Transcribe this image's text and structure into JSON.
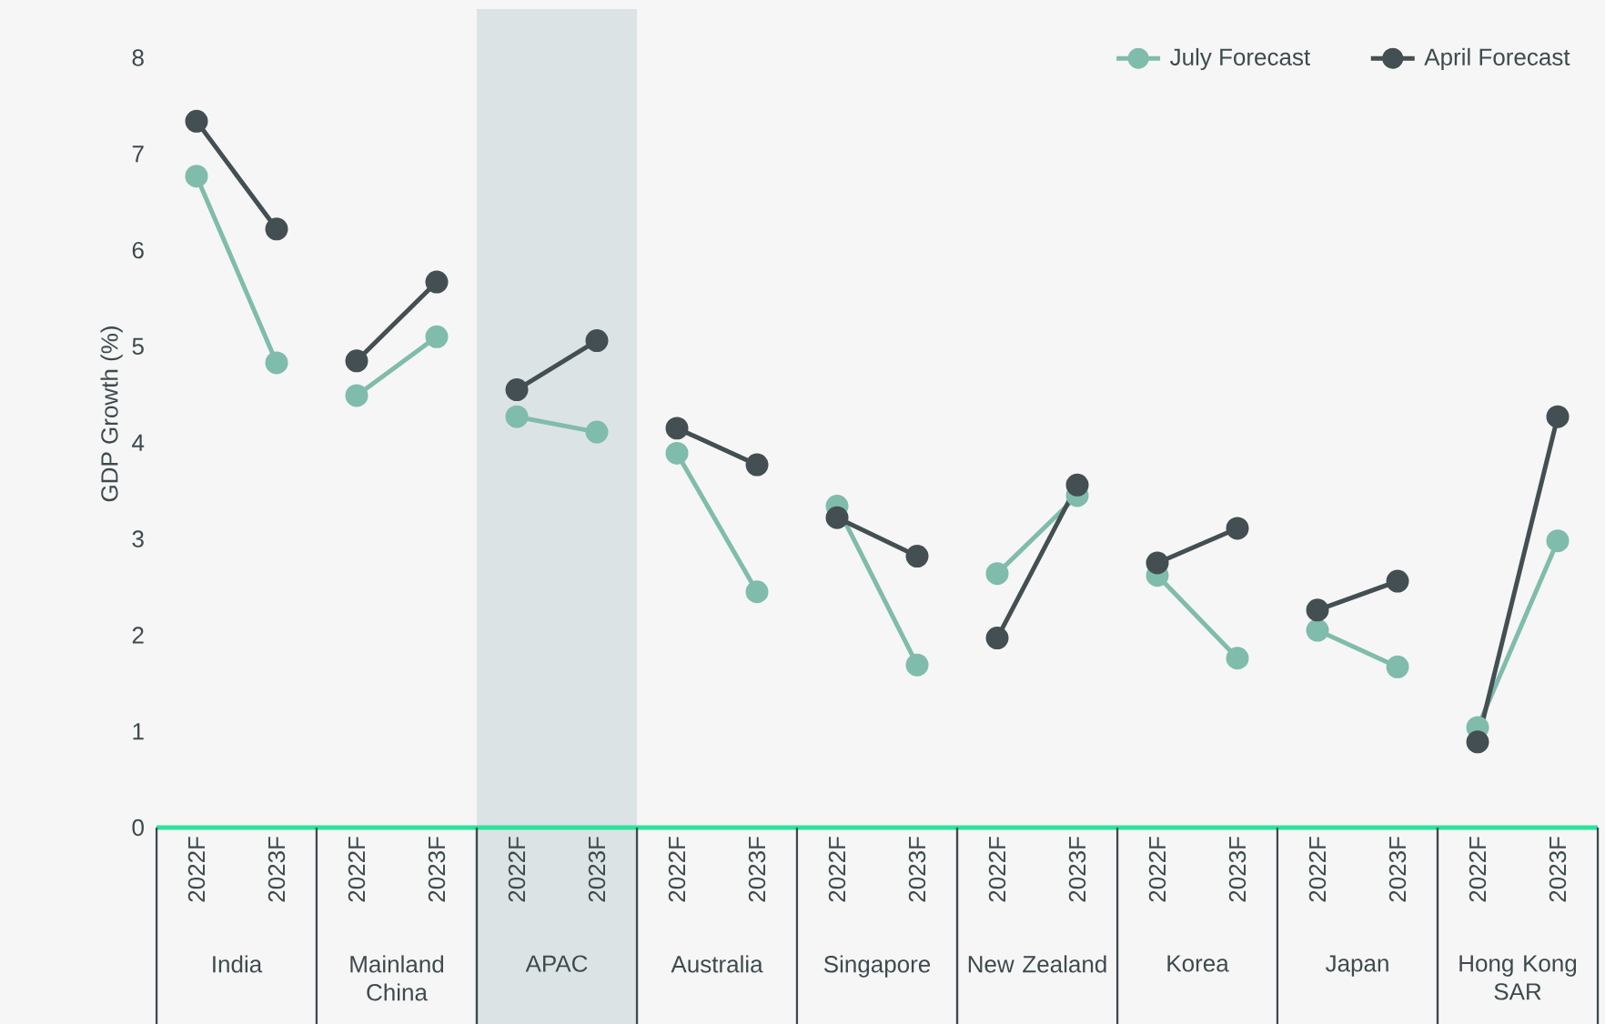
{
  "chart_data": {
    "type": "line",
    "ylabel": "GDP Growth (%)",
    "categories": [
      "2022F",
      "2023F",
      "2022F",
      "2023F",
      "2022F",
      "2023F",
      "2022F",
      "2023F",
      "2022F",
      "2023F",
      "2022F",
      "2023F",
      "2022F",
      "2023F",
      "2022F",
      "2023F",
      "2022F",
      "2023F"
    ],
    "annotations": [
      "India",
      "Mainland China",
      "APAC",
      "Australia",
      "Singapore",
      "New Zealand",
      "Korea",
      "Japan",
      "Hong Kong SAR"
    ],
    "series": [
      {
        "name": "July Forecast",
        "color": "#80bcab",
        "values": [
          6.77,
          4.83,
          4.49,
          5.1,
          4.27,
          4.11,
          3.89,
          2.45,
          3.34,
          1.69,
          2.64,
          3.45,
          2.62,
          1.76,
          2.05,
          1.67,
          1.04,
          2.98
        ]
      },
      {
        "name": "April Forecast",
        "color": "#434f52",
        "values": [
          7.34,
          6.22,
          4.85,
          5.67,
          4.55,
          5.06,
          4.15,
          3.77,
          3.22,
          2.82,
          1.97,
          3.56,
          2.75,
          3.11,
          2.26,
          2.56,
          0.89,
          4.27
        ]
      }
    ],
    "ylim": [
      0,
      8.6
    ],
    "yticks": [
      0,
      1,
      2,
      3,
      4,
      5,
      6,
      7,
      8
    ],
    "grid": false,
    "legend": "top right",
    "marker": "circle",
    "line_style": "solid"
  }
}
